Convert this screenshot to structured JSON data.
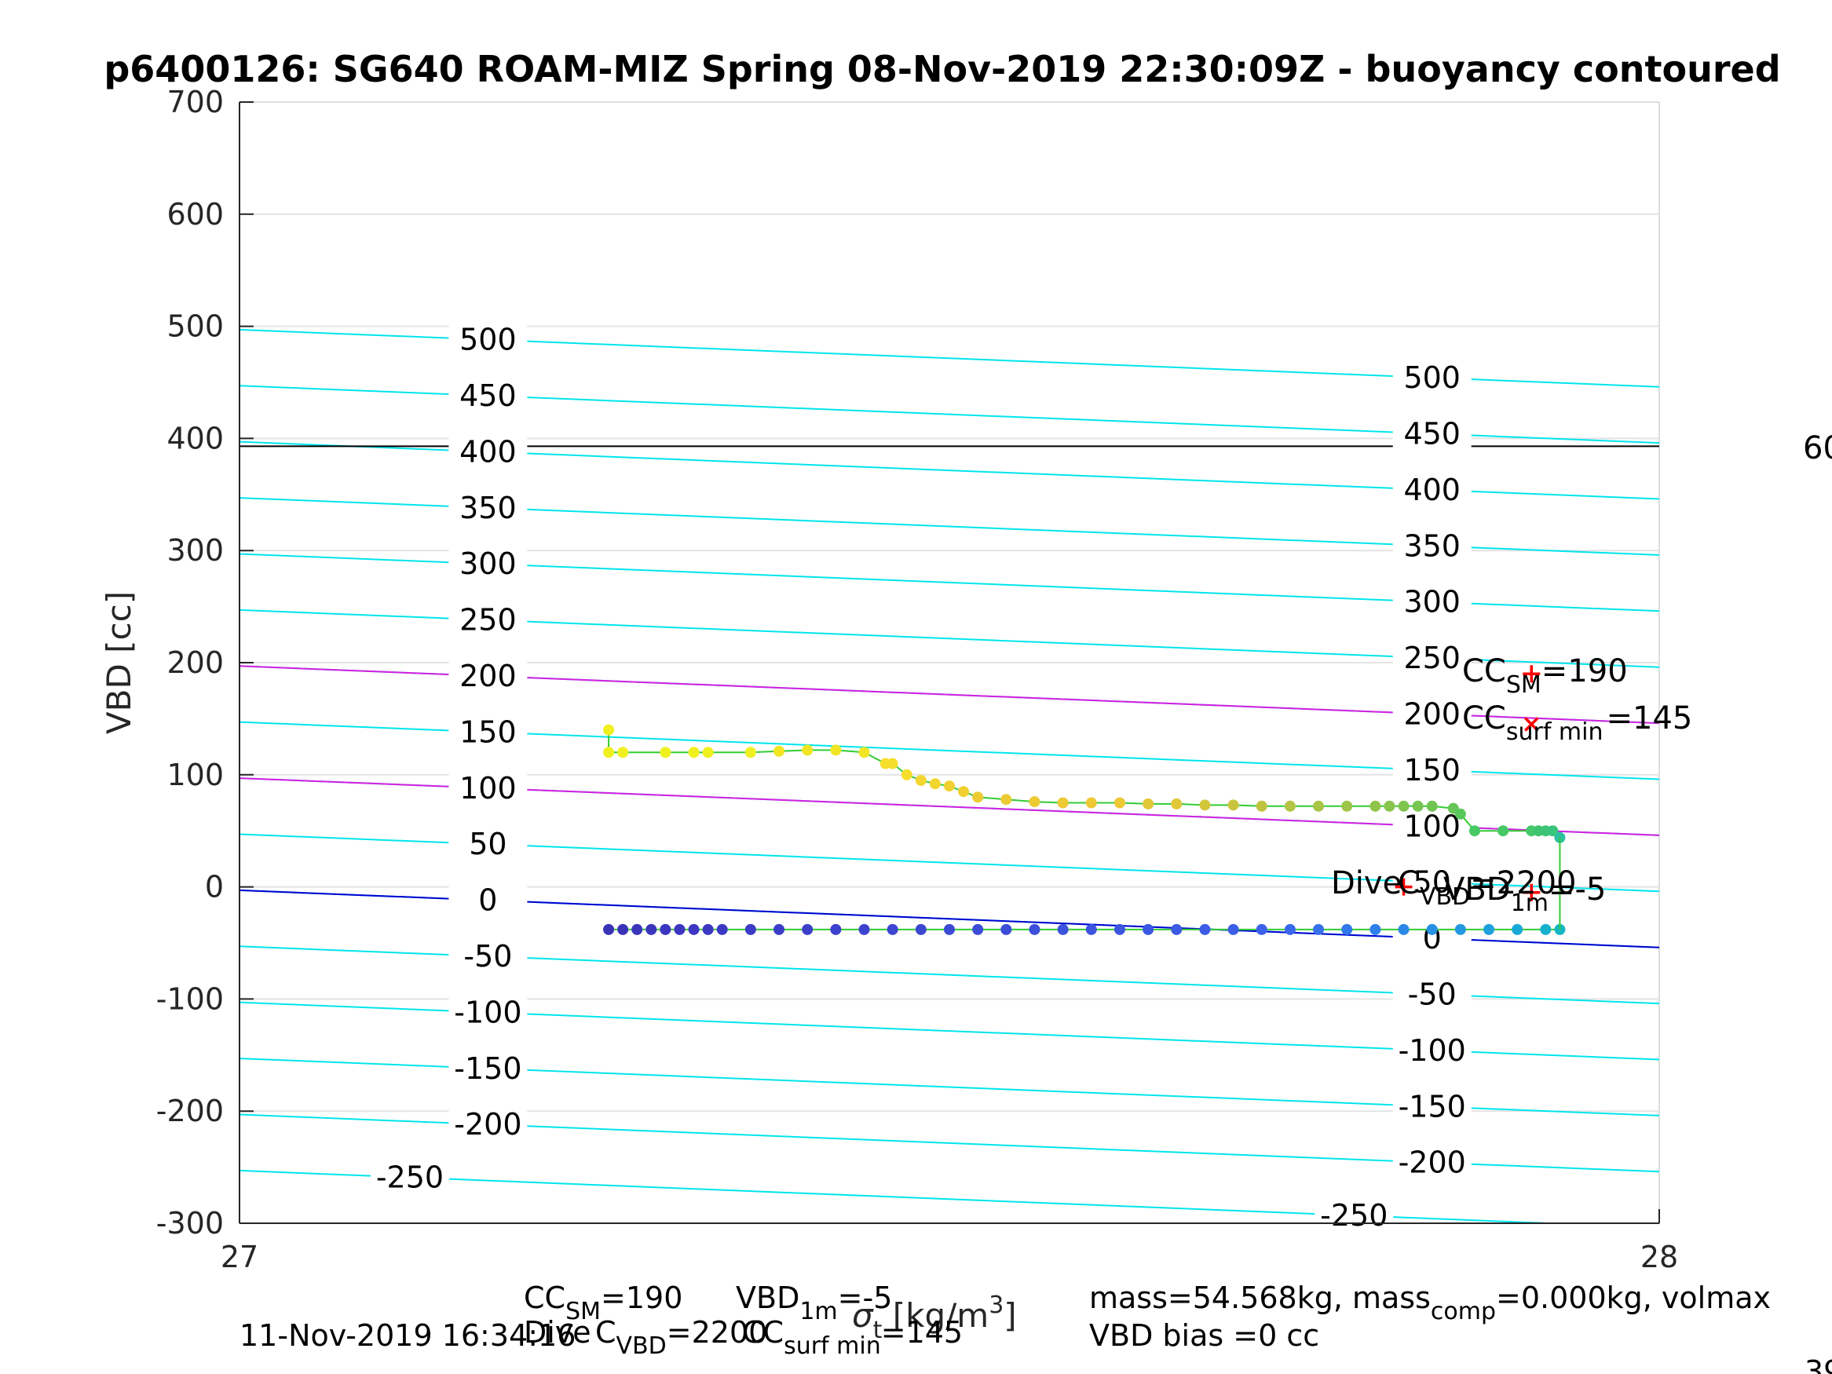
{
  "chart_data": {
    "type": "scatter",
    "title": "p6400126: SG640 ROAM-MIZ Spring 08-Nov-2019 22:30:09Z - buoyancy contoured",
    "xlabel_parts": {
      "sigma": "σ",
      "t": "t",
      "unit_pre": " [kg/m",
      "unit_exp": "3",
      "unit_post": "]"
    },
    "ylabel": "VBD [cc]",
    "xlim": [
      27,
      28
    ],
    "ylim": [
      -300,
      700
    ],
    "xticks": [
      27,
      28
    ],
    "yticks": [
      -300,
      -200,
      -100,
      0,
      100,
      200,
      300,
      400,
      500,
      600,
      700
    ],
    "grid": true,
    "buoyancy_contours": {
      "levels": [
        500,
        450,
        400,
        350,
        300,
        250,
        200,
        150,
        100,
        50,
        0,
        -50,
        -100,
        -150,
        -200,
        -250
      ],
      "left_labels": [
        "500",
        "450",
        "400",
        "350",
        "300",
        "250",
        "200",
        "150",
        "100",
        "50",
        "0",
        "-50",
        "-100",
        "-150",
        "-200",
        "-250"
      ],
      "right_labels": [
        "500",
        "450",
        "400",
        "350",
        "300",
        "250",
        "200",
        "150",
        "100",
        "50",
        "0",
        "-50",
        "-100",
        "-150",
        "-200",
        "-250"
      ],
      "vbd_at_x27": [
        497,
        447,
        397,
        347,
        297,
        247,
        197,
        147,
        97,
        47,
        -3,
        -53,
        -103,
        -153,
        -203,
        -253
      ],
      "vbd_at_x28": [
        446,
        396,
        346,
        296,
        246,
        196,
        146,
        96,
        46,
        -4,
        -54,
        -104,
        -154,
        -204,
        -254,
        -304
      ],
      "color": "#00e5ee"
    },
    "reference_lines": [
      {
        "kind": "magenta",
        "color": "#d81ee0",
        "vbd_at_x27": 197,
        "vbd_at_x28": 146
      },
      {
        "kind": "magenta",
        "color": "#d81ee0",
        "vbd_at_x27": 97,
        "vbd_at_x28": 46
      },
      {
        "kind": "blue",
        "color": "#0000d0",
        "vbd_at_x27": -3,
        "vbd_at_x28": -54
      },
      {
        "kind": "horizontal",
        "color": "#000000",
        "vbd": 393
      }
    ],
    "series": [
      {
        "name": "",
        "segment": "climb",
        "line_color": "#33cc33",
        "x": [
          27.26,
          27.26,
          27.27,
          27.3,
          27.32,
          27.33,
          27.36,
          27.38,
          27.4,
          27.42,
          27.44,
          27.455,
          27.46,
          27.47,
          27.48,
          27.49,
          27.5,
          27.51,
          27.52,
          27.54,
          27.56,
          27.58,
          27.6,
          27.62,
          27.64,
          27.66,
          27.68,
          27.7,
          27.72,
          27.74,
          27.76,
          27.78,
          27.8,
          27.81,
          27.82,
          27.83,
          27.84,
          27.855,
          27.86,
          27.87,
          27.89,
          27.91,
          27.915,
          27.92,
          27.925,
          27.93
        ],
        "y": [
          140,
          120,
          120,
          120,
          120,
          120,
          120,
          121,
          122,
          122,
          120,
          110,
          110,
          100,
          95,
          92,
          90,
          85,
          80,
          78,
          76,
          75,
          75,
          75,
          74,
          74,
          73,
          73,
          72,
          72,
          72,
          72,
          72,
          72,
          72,
          72,
          72,
          70,
          65,
          50,
          50,
          50,
          50,
          50,
          50,
          44
        ],
        "colors": [
          "#f0f020",
          "#f0f020",
          "#f0f020",
          "#f0f020",
          "#f0f020",
          "#f0f020",
          "#f0f020",
          "#f2e524",
          "#f2e524",
          "#f2e524",
          "#f2e524",
          "#f5de2c",
          "#f5de2c",
          "#f5de2c",
          "#f3d530",
          "#f3d530",
          "#f0d030",
          "#f0d030",
          "#eccb32",
          "#eccb32",
          "#eccb32",
          "#eec835",
          "#eec835",
          "#eec835",
          "#e0c838",
          "#e0c838",
          "#d2c63b",
          "#c8c43e",
          "#bec340",
          "#b4c444",
          "#a8c446",
          "#9cc448",
          "#90c44a",
          "#88c44c",
          "#80c44e",
          "#78c450",
          "#70c452",
          "#66c656",
          "#58c85a",
          "#48c862",
          "#46c866",
          "#44c86a",
          "#40c46e",
          "#3cc474",
          "#38c47a",
          "#2cc0a0"
        ]
      },
      {
        "name": "",
        "segment": "dive",
        "line_color": "#33cc33",
        "x": [
          27.26,
          27.27,
          27.28,
          27.29,
          27.3,
          27.31,
          27.32,
          27.33,
          27.34,
          27.36,
          27.38,
          27.4,
          27.42,
          27.44,
          27.46,
          27.48,
          27.5,
          27.52,
          27.54,
          27.56,
          27.58,
          27.6,
          27.62,
          27.64,
          27.66,
          27.68,
          27.7,
          27.72,
          27.74,
          27.76,
          27.78,
          27.8,
          27.82,
          27.84,
          27.86,
          27.88,
          27.9,
          27.92,
          27.93
        ],
        "y": [
          -38,
          -38,
          -38,
          -38,
          -38,
          -38,
          -38,
          -38,
          -38,
          -38,
          -38,
          -38,
          -38,
          -38,
          -38,
          -38,
          -38,
          -38,
          -38,
          -38,
          -38,
          -38,
          -38,
          -38,
          -38,
          -38,
          -38,
          -38,
          -38,
          -38,
          -38,
          -38,
          -38,
          -38,
          -38,
          -38,
          -38,
          -38,
          -38
        ],
        "colors": [
          "#3a33b8",
          "#3a33b8",
          "#3b35bc",
          "#3b35bc",
          "#3c36c0",
          "#3c36c0",
          "#3c38c2",
          "#3c38c2",
          "#3c3ac4",
          "#3c3cc6",
          "#3c3ec8",
          "#3c40ca",
          "#3c42cc",
          "#3c44ce",
          "#3c46d0",
          "#3c48d2",
          "#3c4ad4",
          "#3c4cd6",
          "#3c4ed8",
          "#3c50da",
          "#3c52dc",
          "#3c54de",
          "#3c56e0",
          "#3c58e2",
          "#3c5ae4",
          "#3c5ce6",
          "#3c5ee8",
          "#3c62ea",
          "#3a68ea",
          "#3670ea",
          "#3278ea",
          "#2e80e8",
          "#2a88e6",
          "#2690e4",
          "#2298e0",
          "#1ea0dc",
          "#1aa8d6",
          "#16b0cc",
          "#14b6c4"
        ]
      }
    ],
    "markers": [
      {
        "symbol": "+",
        "color": "#ff0000",
        "x": 27.91,
        "y": 190
      },
      {
        "symbol": "x",
        "color": "#ff0000",
        "x": 27.91,
        "y": 145
      },
      {
        "symbol": "+",
        "color": "#ff0000",
        "x": 27.82,
        "y": 0
      },
      {
        "symbol": "+",
        "color": "#ff0000",
        "x": 27.91,
        "y": -5
      }
    ],
    "annotations": {
      "cc_sm": {
        "base": "CC",
        "sub": "SM",
        "value": "=190"
      },
      "cc_surf_min": {
        "base": "CC",
        "sub": "surf min",
        "value": "=145"
      },
      "dive_label": "Dive",
      "cc_vbd": {
        "base": "C",
        "sub": "VBD",
        "value": "=2200"
      },
      "vbd_1m": {
        "base": "VBD",
        "sub": "1m",
        "value": "=-5"
      },
      "right_edge_fragment": "60"
    },
    "footer": {
      "timestamp": "11-Nov-2019 16:34:16",
      "cc_sm": {
        "base": "CC",
        "sub": "SM",
        "value": "=190"
      },
      "vbd_1m": {
        "base": "VBD",
        "sub": "1m",
        "value": "=-5"
      },
      "dive_label": "Dive",
      "cc_vbd": {
        "base": "C",
        "sub": "VBD",
        "value": "=2200"
      },
      "cc_surf_min": {
        "base": "CC",
        "sub": "surf min",
        "value": "=145"
      },
      "mass_line": {
        "p1": "mass=54.568kg, mass",
        "sub": "comp",
        "p2": "=0.000kg, volmax"
      },
      "vbd_bias": "VBD bias =0 cc",
      "corner_fragment": "39"
    }
  }
}
